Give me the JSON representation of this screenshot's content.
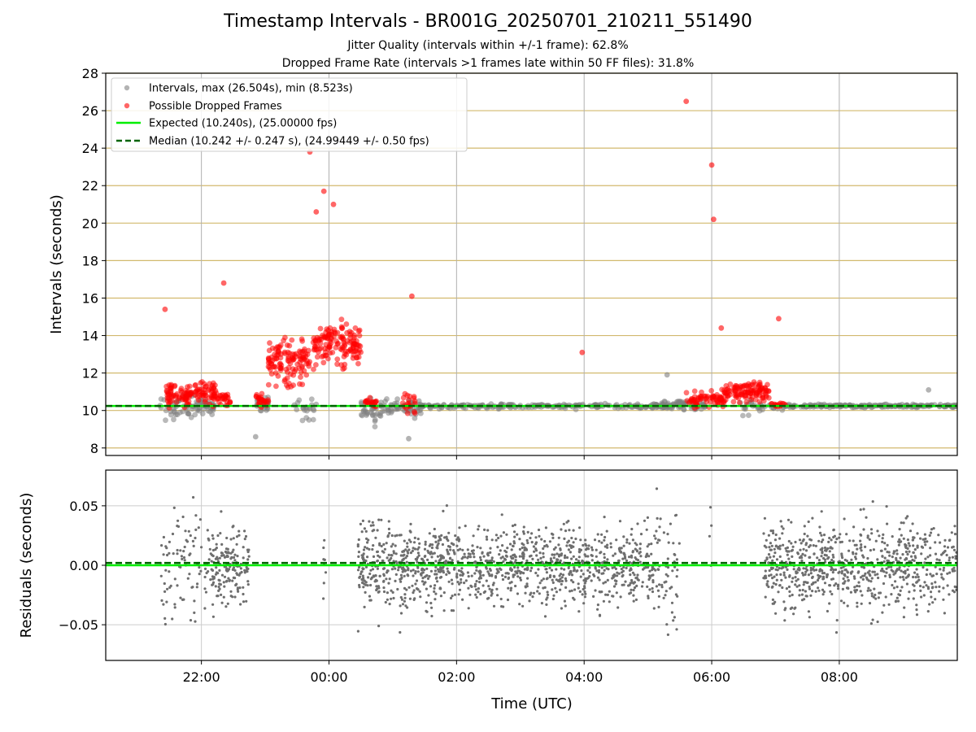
{
  "chart_data": [
    {
      "panel": "intervals",
      "type": "scatter",
      "title": "Timestamp Intervals - BR001G_20250701_210211_551490",
      "subtitles": [
        "Jitter Quality (intervals within +/-1 frame): 62.8%",
        "Dropped Frame Rate (intervals >1 frames late within 50 FF files): 31.8%"
      ],
      "xlabel": "",
      "ylabel": "Intervals (seconds)",
      "xlim_hours": [
        20.5,
        33.85
      ],
      "ylim": [
        7.6,
        28.0
      ],
      "yticks": [
        8,
        10,
        12,
        14,
        16,
        18,
        20,
        22,
        24,
        26,
        28
      ],
      "xtick_hours": [
        22,
        24,
        26,
        28,
        30,
        32
      ],
      "grid": "vertical lines at x ticks, tan horizontal lines at y ticks",
      "legend_position": "top-left",
      "legend": [
        "Intervals, max (26.504s), min (8.523s)",
        "Possible Dropped Frames",
        "Expected (10.240s), (25.00000 fps)",
        "Median (10.242 +/- 0.247 s), (24.99449 +/- 0.50 fps)"
      ],
      "expected": 10.24,
      "median": 10.242,
      "colors": {
        "intervals": "#808080",
        "dropped": "#ff0000",
        "expected": "#00ee00",
        "median": "#006400",
        "grid": "#b0b0b0",
        "hgrid": "#d2b96e"
      },
      "notable_points": [
        {
          "x_hour": 29.6,
          "y": 26.5
        },
        {
          "x_hour": 30.0,
          "y": 23.1
        },
        {
          "x_hour": 23.7,
          "y": 23.8
        },
        {
          "x_hour": 23.92,
          "y": 21.7
        },
        {
          "x_hour": 24.07,
          "y": 21.0
        },
        {
          "x_hour": 23.8,
          "y": 20.6
        },
        {
          "x_hour": 30.03,
          "y": 20.2
        },
        {
          "x_hour": 22.35,
          "y": 16.8
        },
        {
          "x_hour": 21.43,
          "y": 15.4
        },
        {
          "x_hour": 25.3,
          "y": 16.1
        },
        {
          "x_hour": 27.97,
          "y": 13.1
        },
        {
          "x_hour": 31.05,
          "y": 14.9
        },
        {
          "x_hour": 30.15,
          "y": 14.4
        },
        {
          "x_hour": 25.25,
          "y": 8.5
        },
        {
          "x_hour": 22.85,
          "y": 8.6
        },
        {
          "x_hour": 33.4,
          "y": 11.1
        },
        {
          "x_hour": 29.3,
          "y": 11.9
        }
      ]
    },
    {
      "panel": "residuals",
      "type": "scatter",
      "xlabel": "Time (UTC)",
      "ylabel": "Residuals (seconds)",
      "xlim_hours": [
        20.5,
        33.85
      ],
      "ylim": [
        -0.08,
        0.08
      ],
      "yticks": [
        -0.05,
        0.0,
        0.05
      ],
      "ytick_labels": [
        "−0.05",
        "0.00",
        "0.05"
      ],
      "xtick_hours": [
        22,
        24,
        26,
        28,
        30,
        32
      ],
      "xtick_labels": [
        "22:00",
        "00:00",
        "02:00",
        "04:00",
        "06:00",
        "08:00"
      ],
      "expected": 0.0,
      "median": 0.002,
      "grid": "on",
      "colors": {
        "points": "#6e6e6e",
        "expected": "#00ee00",
        "median": "#006400"
      }
    }
  ]
}
